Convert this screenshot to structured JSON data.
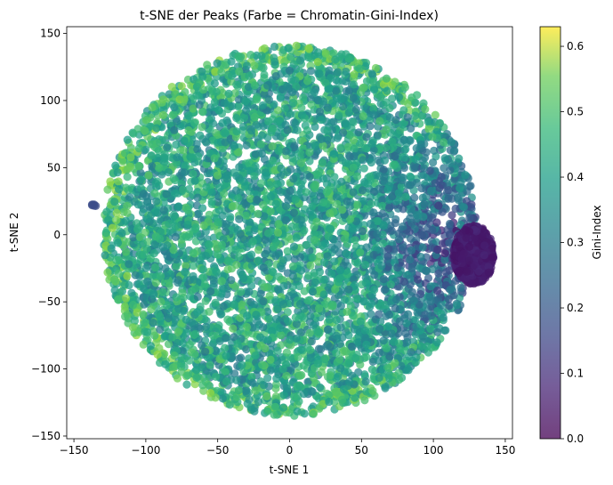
{
  "chart_data": {
    "type": "scatter",
    "title": "t-SNE der Peaks (Farbe = Chromatin-Gini-Index)",
    "xlabel": "t-SNE 1",
    "ylabel": "t-SNE 2",
    "xlim": [
      -155,
      155
    ],
    "ylim": [
      -152,
      155
    ],
    "xticks": [
      -150,
      -100,
      -50,
      0,
      50,
      100,
      150
    ],
    "xtick_labels": [
      "−150",
      "−100",
      "−50",
      "0",
      "50",
      "100",
      "150"
    ],
    "yticks": [
      -150,
      -100,
      -50,
      0,
      50,
      100,
      150
    ],
    "ytick_labels": [
      "−150",
      "−100",
      "−50",
      "0",
      "50",
      "100",
      "150"
    ],
    "grid": false,
    "colormap": "viridis",
    "colorbar": {
      "label": "Gini-Index",
      "range": [
        0.0,
        0.63
      ],
      "ticks": [
        0.0,
        0.1,
        0.2,
        0.3,
        0.4,
        0.5,
        0.6
      ],
      "tick_labels": [
        "0.0",
        "0.1",
        "0.2",
        "0.3",
        "0.4",
        "0.5",
        "0.6"
      ]
    },
    "point_alpha": 0.75,
    "regions": [
      {
        "name": "main-cloud",
        "center": [
          0,
          3
        ],
        "radii": [
          130,
          138
        ],
        "gini_mean": 0.34
      },
      {
        "name": "right-tail",
        "center": [
          128,
          -15
        ],
        "radii": [
          14,
          22
        ],
        "gini_mean": 0.03
      },
      {
        "name": "left-outlier",
        "center": [
          -136,
          22
        ],
        "radii": [
          3,
          3
        ],
        "gini_mean": 0.15
      }
    ]
  },
  "colors": {
    "viridis_dark": "#440154",
    "viridis_mid": "#21918c",
    "viridis_light": "#fde725"
  }
}
